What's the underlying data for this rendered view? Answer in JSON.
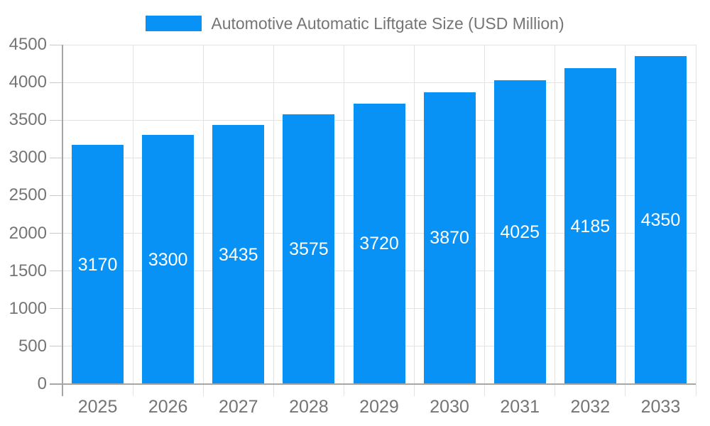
{
  "chart_data": {
    "type": "bar",
    "title": "Automotive Automatic Liftgate Size (USD Million)",
    "categories": [
      "2025",
      "2026",
      "2027",
      "2028",
      "2029",
      "2030",
      "2031",
      "2032",
      "2033"
    ],
    "values": [
      3170,
      3300,
      3435,
      3575,
      3720,
      3870,
      4025,
      4185,
      4350
    ],
    "xlabel": "",
    "ylabel": "",
    "ylim": [
      0,
      4500
    ],
    "ytick_step": 500,
    "yticks": [
      0,
      500,
      1000,
      1500,
      2000,
      2500,
      3000,
      3500,
      4000,
      4500
    ],
    "legend": [
      "Automotive Automatic Liftgate Size (USD Million)"
    ],
    "legend_position": "top-center",
    "grid": true,
    "bar_label_position": "inside-middle"
  },
  "chart_style": {
    "bar_color": "#0892f5",
    "bar_value_color": "#ffffff",
    "axis_text_color": "#757575",
    "grid_color": "#e3e3e3",
    "axis_line_color": "#a6a6a6",
    "background": "#ffffff"
  }
}
